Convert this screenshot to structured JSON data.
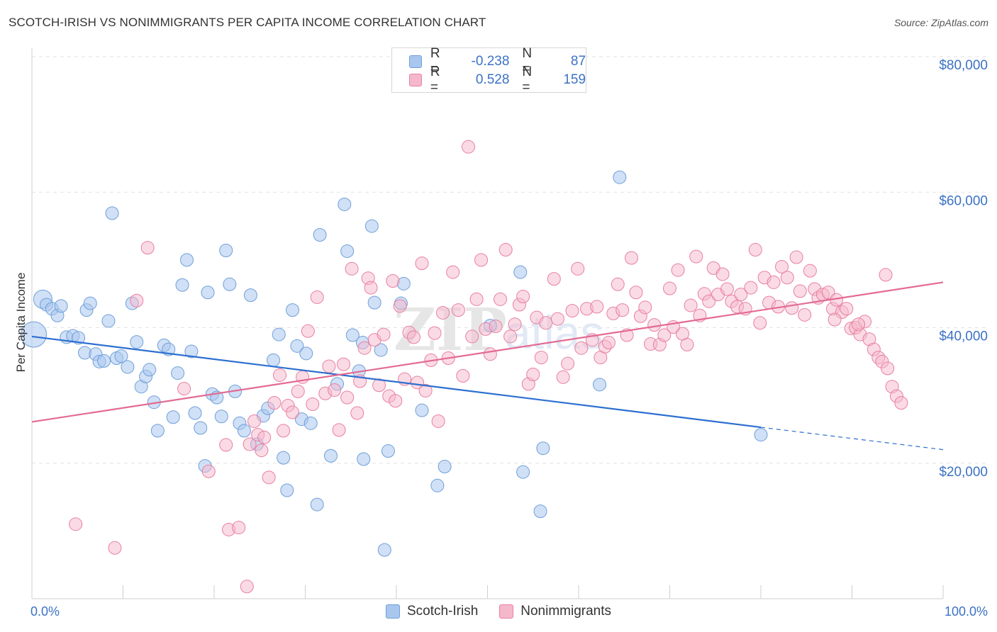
{
  "title": "SCOTCH-IRISH VS NONIMMIGRANTS PER CAPITA INCOME CORRELATION CHART",
  "source": "Source: ZipAtlas.com",
  "watermark": "ZIPatlas",
  "legend": {
    "rows": [
      {
        "r_label": "R =",
        "r_value": "-0.238",
        "n_label": "N =",
        "n_value": "87",
        "color": "#a9c6ee",
        "stroke": "#6f9fd8"
      },
      {
        "r_label": "R =",
        "r_value": "0.528",
        "n_label": "N =",
        "n_value": "159",
        "color": "#f5b8cb",
        "stroke": "#e87fa0"
      }
    ]
  },
  "bottom_legend": [
    {
      "label": "Scotch-Irish",
      "color": "#a9c6ee",
      "stroke": "#6f9fd8"
    },
    {
      "label": "Nonimmigrants",
      "color": "#f5b8cb",
      "stroke": "#e87fa0"
    }
  ],
  "chart_data": {
    "type": "scatter",
    "ylabel": "Per Capita Income",
    "xlabel": "",
    "xlim": [
      0,
      100
    ],
    "ylim": [
      0,
      80000
    ],
    "x_tick_labels": [
      "0.0%",
      "100.0%"
    ],
    "y_ticks": [
      {
        "value": 20000,
        "label": "$20,000"
      },
      {
        "value": 40000,
        "label": "$40,000"
      },
      {
        "value": 60000,
        "label": "$60,000"
      },
      {
        "value": 80000,
        "label": "$80,000"
      }
    ],
    "colors": {
      "blue_fill": "#a9c6ee",
      "blue_stroke": "#6f9fd8",
      "blue_line": "#2c6fd1",
      "pink_fill": "#f5b8cb",
      "pink_stroke": "#e87fa0",
      "pink_line": "#e36a93",
      "axis_text": "#3b72c4"
    },
    "series": [
      {
        "name": "Scotch-Irish",
        "trend": {
          "x0": 0,
          "y0": 38700,
          "x1": 80,
          "y1": 25300,
          "dash_to_x": 100,
          "dash_to_y": 22000
        },
        "points": [
          [
            0.2,
            39000,
            18
          ],
          [
            1.2,
            44200,
            13
          ],
          [
            1.6,
            43400,
            9
          ],
          [
            2.2,
            42800,
            9
          ],
          [
            2.8,
            41800,
            9
          ],
          [
            3.2,
            43200,
            9
          ],
          [
            3.8,
            38600,
            9
          ],
          [
            4.5,
            38800,
            9
          ],
          [
            5.1,
            38500,
            9
          ],
          [
            6,
            42600,
            9
          ],
          [
            6.4,
            43600,
            9
          ],
          [
            5.8,
            36300,
            9
          ],
          [
            7,
            36100,
            9
          ],
          [
            7.4,
            35000,
            9
          ],
          [
            7.9,
            35100,
            9
          ],
          [
            8.4,
            41000,
            9
          ],
          [
            8.8,
            56900,
            9
          ],
          [
            9.3,
            35500,
            9
          ],
          [
            9.8,
            35800,
            9
          ],
          [
            10.5,
            34200,
            9
          ],
          [
            11,
            43600,
            9
          ],
          [
            11.5,
            37900,
            9
          ],
          [
            12,
            31300,
            9
          ],
          [
            12.5,
            32800,
            9
          ],
          [
            12.9,
            33800,
            9
          ],
          [
            13.4,
            29000,
            9
          ],
          [
            13.8,
            24800,
            9
          ],
          [
            14.5,
            37400,
            9
          ],
          [
            15,
            36800,
            9
          ],
          [
            15.5,
            26800,
            9
          ],
          [
            16,
            33300,
            9
          ],
          [
            16.5,
            46300,
            9
          ],
          [
            17,
            50000,
            9
          ],
          [
            17.5,
            36500,
            9
          ],
          [
            17.9,
            27400,
            9
          ],
          [
            18.5,
            25200,
            9
          ],
          [
            19,
            19600,
            9
          ],
          [
            19.3,
            45200,
            9
          ],
          [
            19.8,
            30200,
            9
          ],
          [
            20.3,
            29700,
            9
          ],
          [
            20.8,
            26900,
            9
          ],
          [
            21.3,
            51400,
            9
          ],
          [
            21.7,
            46400,
            9
          ],
          [
            22.3,
            30600,
            9
          ],
          [
            22.8,
            25900,
            9
          ],
          [
            23.3,
            24800,
            9
          ],
          [
            24,
            44800,
            9
          ],
          [
            24.7,
            22800,
            9
          ],
          [
            25.4,
            27000,
            9
          ],
          [
            25.9,
            28100,
            9
          ],
          [
            26.5,
            35200,
            9
          ],
          [
            27.1,
            39000,
            9
          ],
          [
            27.6,
            20800,
            9
          ],
          [
            28,
            16000,
            9
          ],
          [
            28.6,
            42600,
            9
          ],
          [
            29.1,
            37300,
            9
          ],
          [
            29.6,
            26500,
            9
          ],
          [
            30.1,
            36200,
            9
          ],
          [
            30.6,
            25900,
            9
          ],
          [
            31.3,
            13900,
            9
          ],
          [
            31.6,
            53700,
            9
          ],
          [
            32.8,
            21100,
            9
          ],
          [
            33.5,
            31700,
            9
          ],
          [
            34.3,
            58200,
            9
          ],
          [
            34.6,
            51300,
            9
          ],
          [
            35.2,
            38900,
            9
          ],
          [
            35.9,
            33600,
            9
          ],
          [
            36.4,
            20600,
            9
          ],
          [
            37.3,
            55000,
            9
          ],
          [
            37.6,
            43700,
            9
          ],
          [
            38.3,
            36700,
            9
          ],
          [
            38.7,
            7200,
            9
          ],
          [
            39.1,
            21800,
            9
          ],
          [
            40.5,
            43600,
            9
          ],
          [
            42.8,
            27800,
            9
          ],
          [
            44.5,
            16700,
            9
          ],
          [
            45.3,
            19500,
            9
          ],
          [
            50.3,
            40300,
            9
          ],
          [
            53.6,
            48200,
            9
          ],
          [
            53.9,
            18700,
            9
          ],
          [
            55.8,
            12900,
            9
          ],
          [
            56.1,
            22200,
            9
          ],
          [
            62.3,
            31600,
            9
          ],
          [
            64.5,
            62200,
            9
          ],
          [
            80,
            24200,
            9
          ],
          [
            36.3,
            37800,
            9
          ],
          [
            40.8,
            46500,
            9
          ]
        ]
      },
      {
        "name": "Nonimmigrants",
        "trend": {
          "x0": 0,
          "y0": 26100,
          "x1": 100,
          "y1": 46700
        },
        "points": [
          [
            4.8,
            11000
          ],
          [
            9.1,
            7500
          ],
          [
            11.5,
            44000
          ],
          [
            12.7,
            51800
          ],
          [
            16.7,
            31000
          ],
          [
            19.4,
            18800
          ],
          [
            21.3,
            22700
          ],
          [
            21.6,
            10200
          ],
          [
            22.7,
            10500
          ],
          [
            23.6,
            1800
          ],
          [
            23.9,
            22800
          ],
          [
            24.4,
            26200
          ],
          [
            24.8,
            24200
          ],
          [
            25.2,
            21900
          ],
          [
            25.5,
            23800
          ],
          [
            26,
            17900
          ],
          [
            26.6,
            28900
          ],
          [
            27.2,
            33000
          ],
          [
            27.6,
            24800
          ],
          [
            28.1,
            28500
          ],
          [
            28.6,
            27500
          ],
          [
            29.2,
            30600
          ],
          [
            29.7,
            32700
          ],
          [
            30.3,
            39500
          ],
          [
            30.8,
            28700
          ],
          [
            31.3,
            44500
          ],
          [
            32.2,
            30300
          ],
          [
            32.6,
            34300
          ],
          [
            33.2,
            30800
          ],
          [
            33.7,
            24900
          ],
          [
            34.2,
            34600
          ],
          [
            34.6,
            29700
          ],
          [
            35.1,
            48700
          ],
          [
            35.7,
            27400
          ],
          [
            36,
            32100
          ],
          [
            36.5,
            37000
          ],
          [
            36.9,
            47300
          ],
          [
            37.2,
            45900
          ],
          [
            37.6,
            38200
          ],
          [
            38.1,
            31500
          ],
          [
            38.6,
            39000
          ],
          [
            39.2,
            29900
          ],
          [
            39.6,
            46900
          ],
          [
            39.9,
            29200
          ],
          [
            40.4,
            43200
          ],
          [
            40.9,
            32400
          ],
          [
            41.4,
            39300
          ],
          [
            41.9,
            38600
          ],
          [
            42.3,
            31900
          ],
          [
            42.8,
            49500
          ],
          [
            43.2,
            30700
          ],
          [
            43.8,
            35200
          ],
          [
            44.2,
            39200
          ],
          [
            44.6,
            26200
          ],
          [
            45.1,
            42200
          ],
          [
            45.7,
            35500
          ],
          [
            46.2,
            48200
          ],
          [
            46.8,
            42600
          ],
          [
            47.3,
            32900
          ],
          [
            47.9,
            66700
          ],
          [
            48.3,
            38700
          ],
          [
            48.8,
            44200
          ],
          [
            49.3,
            50000
          ],
          [
            49.8,
            39800
          ],
          [
            50.3,
            36100
          ],
          [
            50.9,
            40200
          ],
          [
            51.4,
            44200
          ],
          [
            52,
            51500
          ],
          [
            52.5,
            38700
          ],
          [
            53,
            40500
          ],
          [
            53.5,
            43400
          ],
          [
            53.9,
            44600
          ],
          [
            54.5,
            31700
          ],
          [
            55,
            33100
          ],
          [
            55.4,
            41500
          ],
          [
            55.9,
            35600
          ],
          [
            56.4,
            40700
          ],
          [
            57.3,
            47200
          ],
          [
            57.7,
            41300
          ],
          [
            58.3,
            32700
          ],
          [
            58.8,
            34700
          ],
          [
            59.3,
            42500
          ],
          [
            59.9,
            48700
          ],
          [
            60.3,
            37000
          ],
          [
            60.9,
            42800
          ],
          [
            61.5,
            38200
          ],
          [
            62,
            43100
          ],
          [
            62.4,
            35600
          ],
          [
            62.9,
            37200
          ],
          [
            63.3,
            37800
          ],
          [
            63.8,
            42100
          ],
          [
            64.3,
            46400
          ],
          [
            64.8,
            42600
          ],
          [
            65.3,
            38900
          ],
          [
            65.8,
            50300
          ],
          [
            66.3,
            45200
          ],
          [
            66.8,
            41700
          ],
          [
            67.3,
            43000
          ],
          [
            67.9,
            37600
          ],
          [
            68.3,
            40400
          ],
          [
            68.9,
            37500
          ],
          [
            69.4,
            38900
          ],
          [
            70,
            45800
          ],
          [
            70.4,
            40100
          ],
          [
            70.9,
            48500
          ],
          [
            71.4,
            39100
          ],
          [
            71.9,
            37500
          ],
          [
            72.3,
            43300
          ],
          [
            72.9,
            50500
          ],
          [
            73.3,
            41800
          ],
          [
            73.8,
            45000
          ],
          [
            74.3,
            43900
          ],
          [
            74.8,
            48800
          ],
          [
            75.3,
            44900
          ],
          [
            75.8,
            47900
          ],
          [
            76.3,
            45700
          ],
          [
            76.8,
            43900
          ],
          [
            77.4,
            43100
          ],
          [
            77.8,
            44900
          ],
          [
            78.3,
            42800
          ],
          [
            78.9,
            45900
          ],
          [
            79.4,
            51500
          ],
          [
            79.9,
            40700
          ],
          [
            80.4,
            47400
          ],
          [
            80.9,
            43700
          ],
          [
            81.4,
            46700
          ],
          [
            81.9,
            43100
          ],
          [
            82.3,
            49000
          ],
          [
            82.9,
            47400
          ],
          [
            83.4,
            42900
          ],
          [
            83.9,
            50400
          ],
          [
            84.3,
            45400
          ],
          [
            84.8,
            41900
          ],
          [
            85.4,
            48400
          ],
          [
            85.9,
            45700
          ],
          [
            86.3,
            44400
          ],
          [
            86.8,
            44900
          ],
          [
            87.4,
            45200
          ],
          [
            87.9,
            42800
          ],
          [
            88.3,
            44100
          ],
          [
            88.9,
            42300
          ],
          [
            89.4,
            42800
          ],
          [
            89.9,
            39900
          ],
          [
            90.4,
            40000
          ],
          [
            90.9,
            39000
          ],
          [
            91.4,
            40900
          ],
          [
            91.9,
            38300
          ],
          [
            92.4,
            36800
          ],
          [
            92.9,
            35600
          ],
          [
            93.3,
            35000
          ],
          [
            93.9,
            34000
          ],
          [
            94.4,
            31300
          ],
          [
            94.9,
            29900
          ],
          [
            95.4,
            28900
          ],
          [
            93.7,
            47800
          ],
          [
            88.1,
            41200
          ],
          [
            90.7,
            40500
          ]
        ]
      }
    ]
  }
}
